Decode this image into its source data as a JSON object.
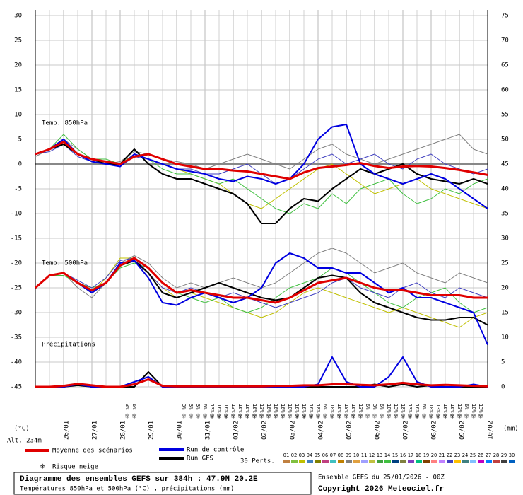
{
  "chart_data": {
    "type": "line",
    "title": "Diagramme des ensembles GEFS sur 384h : 47.9N 20.2E",
    "subtitle": "Températures 850hPa et 500hPa (°C) , précipitations (mm)",
    "run": "Ensemble GEFS du 25/01/2026 - 00Z",
    "copyright": "Copyright 2026 Meteociel.fr",
    "altitude": "Alt. 234m",
    "y_label": "(°C)",
    "y2_label": "(mm)",
    "annotations": [
      "Temp. 850hPa",
      "Temp. 500hPa",
      "Précipitations"
    ],
    "grid": true,
    "xlim": [
      0,
      384
    ],
    "xticks": [
      {
        "value": 24,
        "label": "26/01"
      },
      {
        "value": 48,
        "label": "27/01"
      },
      {
        "value": 72,
        "label": "28/01"
      },
      {
        "value": 96,
        "label": "29/01"
      },
      {
        "value": 120,
        "label": "30/01"
      },
      {
        "value": 144,
        "label": "31/01"
      },
      {
        "value": 168,
        "label": "01/02"
      },
      {
        "value": 192,
        "label": "02/02"
      },
      {
        "value": 216,
        "label": "03/02"
      },
      {
        "value": 240,
        "label": "04/02"
      },
      {
        "value": 264,
        "label": "05/02"
      },
      {
        "value": 288,
        "label": "06/02"
      },
      {
        "value": 312,
        "label": "07/02"
      },
      {
        "value": 336,
        "label": "08/02"
      },
      {
        "value": 360,
        "label": "09/02"
      },
      {
        "value": 384,
        "label": "10/02"
      }
    ],
    "ylim": [
      -45,
      30
    ],
    "yticks": [
      -45,
      -40,
      -35,
      -30,
      -25,
      -20,
      -15,
      -10,
      -5,
      0,
      5,
      10,
      15,
      20,
      25,
      30
    ],
    "y2lim": [
      0,
      75
    ],
    "y2ticks": [
      0,
      5,
      10,
      15,
      20,
      25,
      30,
      35,
      40,
      45,
      50,
      55,
      60,
      65,
      70,
      75
    ],
    "x": [
      0,
      12,
      24,
      36,
      48,
      60,
      72,
      84,
      96,
      108,
      120,
      132,
      144,
      156,
      168,
      180,
      192,
      204,
      216,
      228,
      240,
      252,
      264,
      276,
      288,
      300,
      312,
      324,
      336,
      348,
      360,
      372,
      384
    ],
    "series": [
      {
        "name": "03",
        "color": "#c0c000",
        "width": 1,
        "values": [
          2,
          3,
          4,
          2,
          1,
          0.5,
          0,
          2,
          1,
          0,
          -1,
          -2,
          -3,
          -4,
          -6,
          -8,
          -9,
          -7,
          -5,
          -3,
          -1,
          0,
          -2,
          -4,
          -6,
          -5,
          -4,
          -3,
          -5,
          -6,
          -7,
          -8,
          -9
        ]
      },
      {
        "name": "09",
        "color": "#808080",
        "width": 1,
        "values": [
          1.5,
          3,
          5,
          3,
          1,
          0,
          0.5,
          2.5,
          2,
          1,
          0.5,
          0,
          -1,
          0,
          1,
          2,
          1,
          0,
          -1,
          1,
          3,
          4,
          2,
          1,
          0,
          1,
          2,
          3,
          4,
          5,
          6,
          3,
          2
        ]
      },
      {
        "name": "14",
        "color": "#40c040",
        "width": 1,
        "values": [
          2,
          3,
          6,
          3,
          1,
          1,
          0,
          2,
          1,
          -1,
          -2,
          -2,
          -3,
          -4,
          -3,
          -5,
          -7,
          -9,
          -10,
          -8,
          -9,
          -6,
          -8,
          -5,
          -4,
          -3,
          -6,
          -8,
          -7,
          -5,
          -6,
          -4,
          -3
        ]
      },
      {
        "name": "22",
        "color": "#4040c0",
        "width": 1,
        "values": [
          2,
          2.5,
          4,
          1.5,
          0.5,
          0,
          -0.5,
          1.5,
          1,
          0,
          -1,
          -1,
          -2,
          -2,
          -1,
          0,
          -2,
          -4,
          -3,
          -1,
          1,
          2,
          0,
          1,
          2,
          0,
          -1,
          1,
          2,
          0,
          -1,
          -2,
          -1
        ]
      },
      {
        "name": "03",
        "color": "#c0c000",
        "width": 1,
        "values": [
          -25,
          -22.5,
          -22,
          -24,
          -26,
          -23,
          -19,
          -19,
          -22,
          -25,
          -27,
          -26,
          -27,
          -28,
          -29,
          -30,
          -31,
          -30,
          -28,
          -26,
          -25,
          -26,
          -27,
          -28,
          -29,
          -30,
          -29,
          -30,
          -31,
          -32,
          -33,
          -31,
          -30
        ]
      },
      {
        "name": "09",
        "color": "#808080",
        "width": 1,
        "values": [
          -25,
          -22.5,
          -22,
          -25,
          -27,
          -24,
          -20,
          -18.5,
          -20,
          -23,
          -25,
          -24,
          -25,
          -24,
          -23,
          -24,
          -25,
          -24,
          -22,
          -20,
          -18,
          -17,
          -18,
          -20,
          -22,
          -21,
          -20,
          -22,
          -23,
          -24,
          -22,
          -23,
          -24
        ]
      },
      {
        "name": "14",
        "color": "#40c040",
        "width": 1,
        "values": [
          -25,
          -22.5,
          -22.5,
          -24,
          -25,
          -24,
          -21,
          -20,
          -21,
          -24,
          -26,
          -27,
          -28,
          -27,
          -29,
          -30,
          -29,
          -27,
          -25,
          -24,
          -23,
          -21,
          -22,
          -24,
          -26,
          -28,
          -29,
          -27,
          -26,
          -25,
          -28,
          -30,
          -29
        ]
      },
      {
        "name": "22",
        "color": "#4040c0",
        "width": 1,
        "values": [
          -25,
          -22.5,
          -22,
          -23.5,
          -25,
          -23,
          -19.5,
          -19,
          -22,
          -25,
          -26,
          -25,
          -26,
          -27,
          -26,
          -27,
          -28,
          -29,
          -28,
          -27,
          -26,
          -24,
          -23,
          -25,
          -26,
          -27,
          -25,
          -24,
          -26,
          -27,
          -25,
          -26,
          -27
        ]
      },
      {
        "name": "Run GFS",
        "color": "#000000",
        "width": 2,
        "values": [
          2,
          3,
          4,
          2,
          1,
          0,
          0,
          3,
          0,
          -2,
          -3,
          -3,
          -4,
          -5,
          -6,
          -8,
          -12,
          -12,
          -9,
          -7,
          -7.5,
          -5,
          -3,
          -1,
          -2,
          -1,
          0,
          -2,
          -3,
          -3.5,
          -4,
          -3,
          -4
        ]
      },
      {
        "name": "Run de contrôle",
        "color": "#0000e0",
        "width": 2,
        "values": [
          2,
          3,
          5,
          2,
          0.5,
          0,
          -0.5,
          2,
          1,
          0,
          -1,
          -1.5,
          -2,
          -3,
          -3.5,
          -2.5,
          -3,
          -4,
          -3,
          0,
          5,
          7.5,
          8,
          0,
          -2,
          -3,
          -4,
          -3,
          -2,
          -3,
          -5,
          -7,
          -9
        ]
      },
      {
        "name": "Moyenne des scénarios",
        "color": "#e00000",
        "width": 3,
        "values": [
          2,
          3,
          4.5,
          2,
          1,
          0.5,
          0,
          1.5,
          2,
          1,
          0,
          -0.5,
          -1,
          -1,
          -1.3,
          -1.5,
          -2,
          -2.5,
          -3,
          -1.7,
          -0.8,
          -0.5,
          -0.2,
          0.2,
          -0.4,
          -0.8,
          -0.5,
          -0.4,
          -0.5,
          -0.8,
          -1.2,
          -1.7,
          -2.2
        ]
      },
      {
        "name": "Run GFS",
        "color": "#000000",
        "width": 2,
        "values": [
          -25,
          -22.5,
          -22,
          -24,
          -26,
          -24,
          -20.5,
          -19.5,
          -22,
          -26,
          -27,
          -26,
          -25,
          -24,
          -25,
          -26,
          -27,
          -27.5,
          -27,
          -25,
          -23,
          -22.5,
          -23,
          -26,
          -28,
          -29,
          -30,
          -31,
          -31.5,
          -31.5,
          -31,
          -31,
          -32.5
        ]
      },
      {
        "name": "Run de contrôle",
        "color": "#0000e0",
        "width": 2,
        "values": [
          -25,
          -22.5,
          -22,
          -24,
          -26,
          -24,
          -20,
          -19.5,
          -23,
          -28,
          -28.5,
          -27,
          -26,
          -27,
          -28,
          -27,
          -25,
          -20,
          -18,
          -19,
          -21,
          -21,
          -22,
          -22,
          -24,
          -26,
          -25,
          -27,
          -27,
          -28,
          -29,
          -30,
          -36.5
        ]
      },
      {
        "name": "Moyenne des scénarios",
        "color": "#e00000",
        "width": 3,
        "values": [
          -25,
          -22.5,
          -22,
          -24,
          -25.5,
          -24,
          -20.5,
          -19,
          -21,
          -24,
          -26,
          -25.5,
          -26,
          -26.5,
          -27,
          -27,
          -27.5,
          -28,
          -27,
          -25.5,
          -24,
          -23.5,
          -23,
          -24,
          -25,
          -25.5,
          -25.5,
          -26,
          -26.5,
          -26.5,
          -26.5,
          -27,
          -27
        ]
      },
      {
        "name": "Run GFS",
        "color": "#000000",
        "width": 2,
        "axis": "y2",
        "values": [
          0,
          0,
          0,
          0.3,
          0,
          0,
          0,
          0,
          3,
          0,
          0,
          0,
          0,
          0,
          0,
          0,
          0,
          0,
          0,
          0,
          0,
          0,
          0,
          0,
          0.5,
          0,
          0.5,
          0,
          0.3,
          0,
          0,
          0,
          0
        ]
      },
      {
        "name": "Run de contrôle",
        "color": "#0000e0",
        "width": 2,
        "axis": "y2",
        "values": [
          0,
          0,
          0,
          0.5,
          0,
          0,
          0,
          1,
          2,
          0,
          0,
          0,
          0,
          0,
          0,
          0,
          0,
          0,
          0,
          0,
          0.5,
          6,
          1,
          0,
          0,
          2,
          6,
          1,
          0,
          0,
          0,
          0.5,
          0
        ]
      },
      {
        "name": "Moyenne des scénarios",
        "color": "#e00000",
        "width": 3,
        "axis": "y2",
        "values": [
          0,
          0,
          0.2,
          0.6,
          0.3,
          0,
          0,
          0.5,
          1.5,
          0.2,
          0.1,
          0.1,
          0.1,
          0.1,
          0.1,
          0.1,
          0.1,
          0.2,
          0.2,
          0.3,
          0.3,
          0.5,
          0.5,
          0.4,
          0.3,
          0.5,
          0.8,
          0.5,
          0.3,
          0.4,
          0.3,
          0.2,
          0.1
        ]
      }
    ],
    "snow_risk": {
      "label": "Risque neige",
      "color": "#5aa0e0",
      "x": [
        78,
        84,
        126,
        132,
        138,
        144,
        150,
        156,
        162,
        168,
        174,
        180,
        186,
        192,
        198,
        204,
        210,
        216,
        222,
        228,
        234,
        240,
        246,
        252,
        258,
        264,
        270,
        276,
        282,
        288,
        294,
        300,
        306,
        312,
        318,
        324,
        330,
        336,
        342,
        348,
        354,
        360,
        366,
        372,
        378
      ],
      "values": [
        3,
        6,
        3,
        3,
        3,
        6,
        13,
        16,
        16,
        13,
        16,
        16,
        16,
        13,
        16,
        16,
        16,
        10,
        16,
        16,
        16,
        10,
        6,
        10,
        16,
        10,
        16,
        13,
        6,
        3,
        6,
        10,
        13,
        10,
        13,
        16,
        6,
        10,
        13,
        16,
        16,
        13,
        6,
        10,
        13
      ],
      "value_labels": [
        "3%",
        "6%",
        "3%",
        "3%",
        "3%",
        "6%",
        "13%",
        "16%",
        "16%",
        "13%",
        "16%",
        "16%",
        "16%",
        "13%",
        "16%",
        "16%",
        "16%",
        "10%",
        "16%",
        "16%",
        "16%",
        "10%",
        "6%",
        "10%",
        "16%",
        "10%",
        "16%",
        "13%",
        "6%",
        "3%",
        "6%",
        "10%",
        "13%",
        "10%",
        "13%",
        "16%",
        "6%",
        "10%",
        "13%",
        "16%",
        "16%",
        "13%",
        "6%",
        "10%",
        "13%"
      ]
    },
    "perturbations_label": "30 Perts.",
    "perturbations": [
      {
        "name": "01",
        "color": "#c08040"
      },
      {
        "name": "02",
        "color": "#80c040"
      },
      {
        "name": "03",
        "color": "#c0c000"
      },
      {
        "name": "04",
        "color": "#4080c0"
      },
      {
        "name": "05",
        "color": "#808000"
      },
      {
        "name": "06",
        "color": "#c04080"
      },
      {
        "name": "07",
        "color": "#40c0c0"
      },
      {
        "name": "08",
        "color": "#c08000"
      },
      {
        "name": "09",
        "color": "#808080"
      },
      {
        "name": "10",
        "color": "#e0a040"
      },
      {
        "name": "11",
        "color": "#a0a0ff"
      },
      {
        "name": "12",
        "color": "#c0c040"
      },
      {
        "name": "13",
        "color": "#40a040"
      },
      {
        "name": "14",
        "color": "#40c040"
      },
      {
        "name": "15",
        "color": "#004080"
      },
      {
        "name": "16",
        "color": "#808040"
      },
      {
        "name": "17",
        "color": "#8040c0"
      },
      {
        "name": "18",
        "color": "#00c080"
      },
      {
        "name": "19",
        "color": "#804000"
      },
      {
        "name": "20",
        "color": "#ff8080"
      },
      {
        "name": "21",
        "color": "#c080ff"
      },
      {
        "name": "22",
        "color": "#4040c0"
      },
      {
        "name": "23",
        "color": "#ffc000"
      },
      {
        "name": "24",
        "color": "#408080"
      },
      {
        "name": "25",
        "color": "#80c0ff"
      },
      {
        "name": "26",
        "color": "#c000c0"
      },
      {
        "name": "27",
        "color": "#0080ff"
      },
      {
        "name": "28",
        "color": "#c04040"
      },
      {
        "name": "29",
        "color": "#404040"
      },
      {
        "name": "30",
        "color": "#0060c0"
      }
    ]
  }
}
